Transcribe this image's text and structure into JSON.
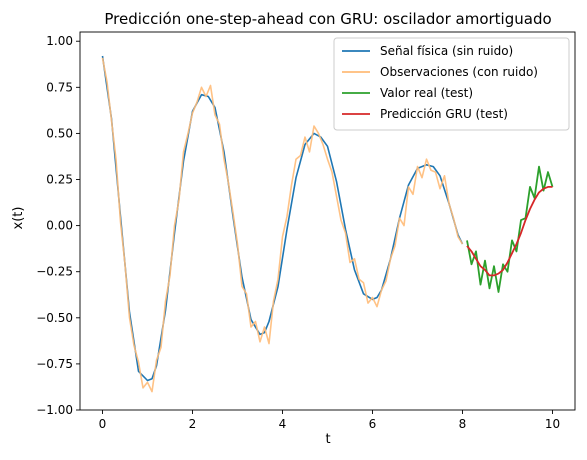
{
  "chart_data": {
    "type": "line",
    "title": "Predicción one-step-ahead con GRU: oscilador amortiguado",
    "xlabel": "t",
    "ylabel": "x(t)",
    "xlim": [
      -0.5,
      10.5
    ],
    "ylim": [
      -1.0,
      1.05
    ],
    "xticks": [
      0,
      2,
      4,
      6,
      8,
      10
    ],
    "xtick_labels": [
      "0",
      "2",
      "4",
      "6",
      "8",
      "10"
    ],
    "yticks": [
      -1.0,
      -0.75,
      -0.5,
      -0.25,
      0.0,
      0.25,
      0.5,
      0.75,
      1.0
    ],
    "ytick_labels": [
      "−1.00",
      "−0.75",
      "−0.50",
      "−0.25",
      "0.00",
      "0.25",
      "0.50",
      "0.75",
      "1.00"
    ],
    "grid": false,
    "legend_position": "top-right",
    "series": [
      {
        "name": "Señal física (sin ruido)",
        "color": "#1f77b4",
        "x": [
          0,
          0.2,
          0.4,
          0.6,
          0.8,
          1.0,
          1.1,
          1.2,
          1.4,
          1.6,
          1.8,
          2.0,
          2.2,
          2.35,
          2.5,
          2.7,
          2.9,
          3.1,
          3.3,
          3.5,
          3.6,
          3.7,
          3.9,
          4.1,
          4.3,
          4.5,
          4.7,
          4.85,
          5.0,
          5.2,
          5.4,
          5.6,
          5.8,
          6.0,
          6.1,
          6.2,
          6.4,
          6.6,
          6.8,
          7.0,
          7.2,
          7.35,
          7.5,
          7.7,
          7.9,
          8.0
        ],
        "y": [
          0.92,
          0.58,
          0.05,
          -0.47,
          -0.79,
          -0.84,
          -0.83,
          -0.76,
          -0.46,
          -0.04,
          0.35,
          0.62,
          0.71,
          0.7,
          0.64,
          0.4,
          0.05,
          -0.28,
          -0.51,
          -0.59,
          -0.58,
          -0.52,
          -0.33,
          -0.02,
          0.26,
          0.44,
          0.5,
          0.48,
          0.43,
          0.24,
          -0.02,
          -0.24,
          -0.37,
          -0.4,
          -0.39,
          -0.35,
          -0.18,
          0.04,
          0.22,
          0.31,
          0.33,
          0.32,
          0.27,
          0.12,
          -0.05,
          -0.1
        ]
      },
      {
        "name": "Observaciones (con ruido)",
        "color": "#ffbb78",
        "x": [
          0,
          0.1,
          0.2,
          0.3,
          0.4,
          0.5,
          0.6,
          0.7,
          0.8,
          0.9,
          1.0,
          1.1,
          1.2,
          1.3,
          1.4,
          1.5,
          1.6,
          1.7,
          1.8,
          1.9,
          2.0,
          2.1,
          2.2,
          2.3,
          2.4,
          2.5,
          2.6,
          2.7,
          2.8,
          2.9,
          3.0,
          3.1,
          3.2,
          3.3,
          3.4,
          3.5,
          3.6,
          3.7,
          3.8,
          3.9,
          4.0,
          4.1,
          4.2,
          4.3,
          4.4,
          4.5,
          4.6,
          4.7,
          4.8,
          4.9,
          5.0,
          5.1,
          5.2,
          5.3,
          5.4,
          5.5,
          5.6,
          5.7,
          5.8,
          5.9,
          6.0,
          6.1,
          6.2,
          6.3,
          6.4,
          6.5,
          6.6,
          6.7,
          6.8,
          6.9,
          7.0,
          7.1,
          7.2,
          7.3,
          7.4,
          7.5,
          7.6,
          7.7,
          7.8,
          7.9,
          8.0
        ],
        "y": [
          0.91,
          0.78,
          0.57,
          0.36,
          0.02,
          -0.21,
          -0.5,
          -0.65,
          -0.74,
          -0.88,
          -0.85,
          -0.9,
          -0.73,
          -0.66,
          -0.41,
          -0.27,
          0.0,
          0.14,
          0.4,
          0.5,
          0.61,
          0.67,
          0.75,
          0.7,
          0.76,
          0.6,
          0.55,
          0.36,
          0.23,
          0.07,
          -0.1,
          -0.33,
          -0.37,
          -0.55,
          -0.52,
          -0.63,
          -0.55,
          -0.64,
          -0.41,
          -0.29,
          -0.06,
          0.05,
          0.22,
          0.36,
          0.38,
          0.48,
          0.4,
          0.54,
          0.5,
          0.44,
          0.36,
          0.29,
          0.16,
          0.03,
          -0.04,
          -0.2,
          -0.18,
          -0.29,
          -0.31,
          -0.42,
          -0.39,
          -0.44,
          -0.35,
          -0.3,
          -0.18,
          -0.11,
          0.04,
          0.0,
          0.21,
          0.17,
          0.32,
          0.26,
          0.36,
          0.3,
          0.29,
          0.2,
          0.27,
          0.12,
          0.04,
          -0.06,
          -0.1
        ]
      },
      {
        "name": "Valor real (test)",
        "color": "#2ca02c",
        "x": [
          8.1,
          8.2,
          8.3,
          8.4,
          8.5,
          8.6,
          8.7,
          8.8,
          8.9,
          9.0,
          9.1,
          9.2,
          9.3,
          9.4,
          9.5,
          9.6,
          9.7,
          9.8,
          9.9,
          10.0
        ],
        "y": [
          -0.08,
          -0.21,
          -0.14,
          -0.32,
          -0.19,
          -0.34,
          -0.22,
          -0.36,
          -0.21,
          -0.25,
          -0.08,
          -0.14,
          0.03,
          0.04,
          0.21,
          0.15,
          0.32,
          0.19,
          0.29,
          0.21
        ]
      },
      {
        "name": "Predicción GRU (test)",
        "color": "#d62728",
        "x": [
          8.1,
          8.2,
          8.3,
          8.4,
          8.5,
          8.6,
          8.7,
          8.8,
          8.9,
          9.0,
          9.1,
          9.2,
          9.3,
          9.4,
          9.5,
          9.6,
          9.7,
          9.8,
          9.9,
          10.0
        ],
        "y": [
          -0.11,
          -0.14,
          -0.18,
          -0.22,
          -0.24,
          -0.27,
          -0.27,
          -0.26,
          -0.24,
          -0.2,
          -0.15,
          -0.1,
          -0.04,
          0.03,
          0.09,
          0.14,
          0.18,
          0.2,
          0.21,
          0.21
        ]
      }
    ]
  }
}
